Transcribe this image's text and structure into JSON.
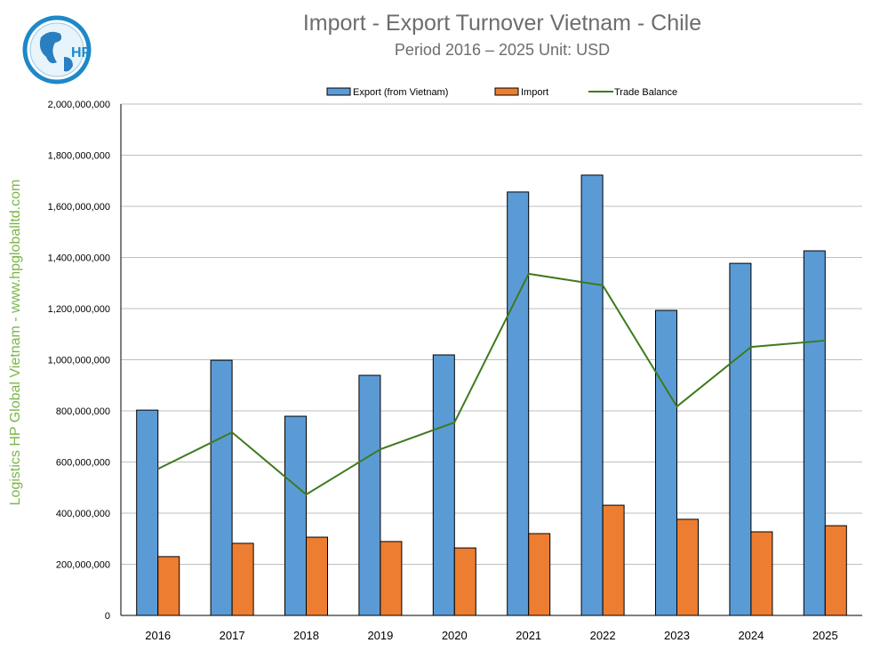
{
  "logo": {
    "text": "HP"
  },
  "side_label": "Logistics HP Global Vietnam - www.hpgloballtd.com",
  "colors": {
    "export": "#5b9bd5",
    "import": "#ed7d31",
    "balance": "#3e7a1f"
  },
  "chart_data": {
    "type": "bar",
    "title": "Import - Export Turnover Vietnam - Chile",
    "subtitle": "Period 2016 – 2025  Unit: USD",
    "categories": [
      "2016",
      "2017",
      "2018",
      "2019",
      "2020",
      "2021",
      "2022",
      "2023",
      "2024",
      "2025"
    ],
    "series": [
      {
        "name": "Export (from Vietnam)",
        "type": "bar",
        "values": [
          803000000,
          998000000,
          779000000,
          939000000,
          1019000000,
          1656000000,
          1722000000,
          1193000000,
          1377000000,
          1426000000
        ]
      },
      {
        "name": "Import",
        "type": "bar",
        "values": [
          230000000,
          282000000,
          306000000,
          289000000,
          264000000,
          320000000,
          431000000,
          376000000,
          327000000,
          351000000
        ]
      },
      {
        "name": "Trade Balance",
        "type": "line",
        "values": [
          573000000,
          716000000,
          473000000,
          650000000,
          755000000,
          1336000000,
          1291000000,
          817000000,
          1050000000,
          1075000000
        ]
      }
    ],
    "ylim": [
      0,
      2000000000
    ],
    "yticks": [
      "0",
      "200,000,000",
      "400,000,000",
      "600,000,000",
      "800,000,000",
      "1,000,000,000",
      "1,200,000,000",
      "1,400,000,000",
      "1,600,000,000",
      "1,800,000,000",
      "2,000,000,000"
    ],
    "grid": true,
    "legend": "top"
  }
}
